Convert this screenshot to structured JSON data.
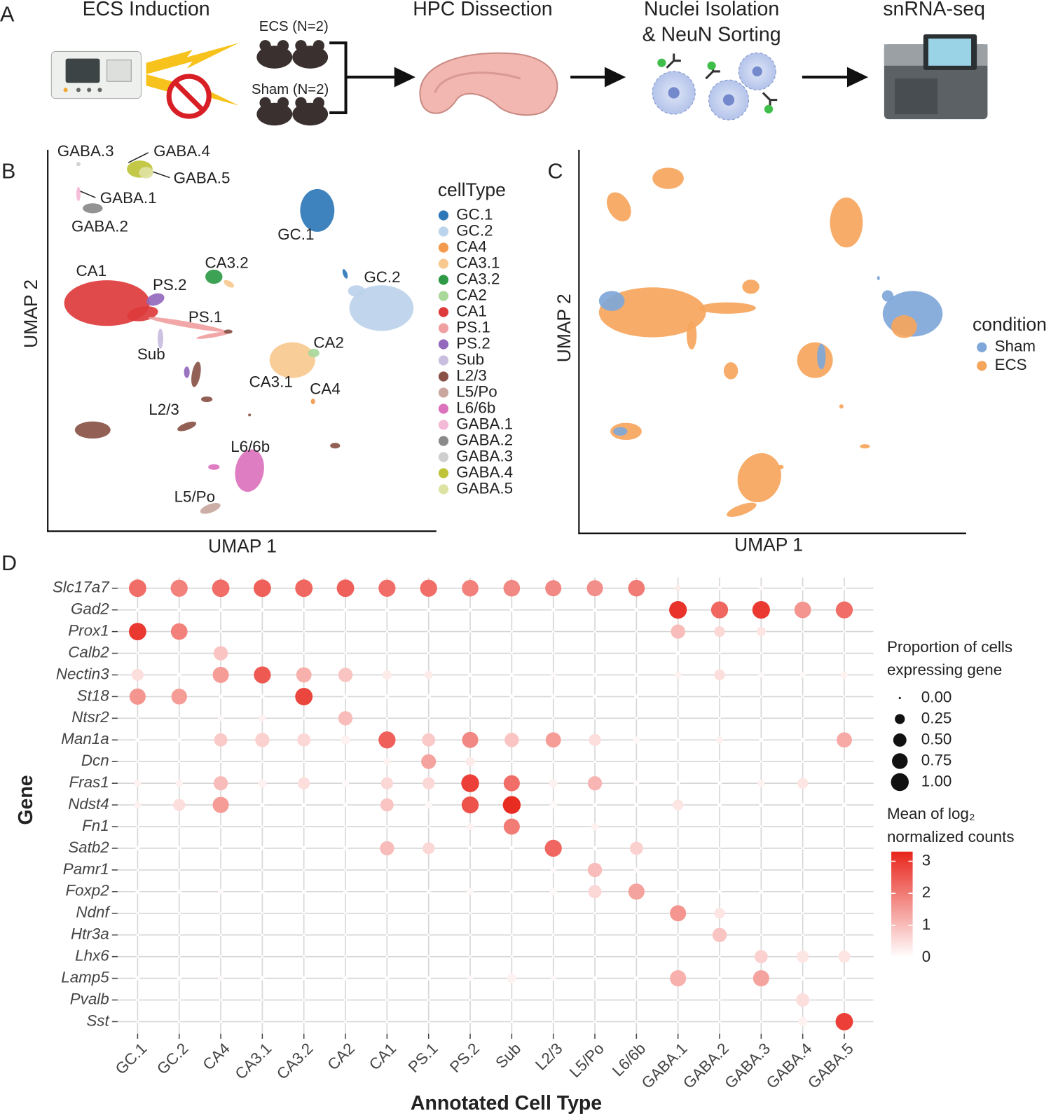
{
  "panel_labels": [
    "A",
    "B",
    "C",
    "D"
  ],
  "workflow": {
    "steps": [
      "ECS Induction",
      "HPC Dissection",
      "Nuclei Isolation",
      "& NeuN Sorting",
      "snRNA-seq"
    ],
    "groups": [
      "ECS (N=2)",
      "Sham (N=2)"
    ]
  },
  "chart_data": [
    {
      "type": "scatter",
      "x_label": "UMAP 1",
      "y_label": "UMAP 2",
      "legend_title": "cellType",
      "series": [
        {
          "name": "GC.1",
          "color": "#2f78b8"
        },
        {
          "name": "GC.2",
          "color": "#bcd3ec"
        },
        {
          "name": "CA4",
          "color": "#f39a4c"
        },
        {
          "name": "CA3.1",
          "color": "#f8c98f"
        },
        {
          "name": "CA3.2",
          "color": "#2e9a45"
        },
        {
          "name": "CA2",
          "color": "#a9d89a"
        },
        {
          "name": "CA1",
          "color": "#dd3b3b"
        },
        {
          "name": "PS.1",
          "color": "#f0a0a0"
        },
        {
          "name": "PS.2",
          "color": "#9368bd"
        },
        {
          "name": "Sub",
          "color": "#c9bde0"
        },
        {
          "name": "L2/3",
          "color": "#8a5247"
        },
        {
          "name": "L5/Po",
          "color": "#c9a79e"
        },
        {
          "name": "L6/6b",
          "color": "#dc72bd"
        },
        {
          "name": "GABA.1",
          "color": "#f4b9d7"
        },
        {
          "name": "GABA.2",
          "color": "#8a8a8a"
        },
        {
          "name": "GABA.3",
          "color": "#cfcfcf"
        },
        {
          "name": "GABA.4",
          "color": "#bfc33a"
        },
        {
          "name": "GABA.5",
          "color": "#dde2a2"
        }
      ]
    },
    {
      "type": "scatter",
      "x_label": "UMAP 1",
      "y_label": "UMAP 2",
      "legend_title": "condition",
      "series": [
        {
          "name": "Sham",
          "color": "#7fa7d9"
        },
        {
          "name": "ECS",
          "color": "#f6a55c"
        }
      ]
    },
    {
      "type": "dot",
      "x_label": "Annotated Cell Type",
      "y_label": "Gene",
      "categories": [
        "GC.1",
        "GC.2",
        "CA4",
        "CA3.1",
        "CA3.2",
        "CA2",
        "CA1",
        "PS.1",
        "PS.2",
        "Sub",
        "L2/3",
        "L5/Po",
        "L6/6b",
        "GABA.1",
        "GABA.2",
        "GABA.3",
        "GABA.4",
        "GABA.5"
      ],
      "genes": [
        "Slc17a7",
        "Gad2",
        "Prox1",
        "Calb2",
        "Nectin3",
        "St18",
        "Ntsr2",
        "Man1a",
        "Dcn",
        "Fras1",
        "Ndst4",
        "Fn1",
        "Satb2",
        "Pamr1",
        "Foxp2",
        "Ndnf",
        "Htr3a",
        "Lhx6",
        "Lamp5",
        "Pvalb",
        "Sst"
      ],
      "size_legend_title": [
        "Proportion of cells",
        "expressing gene"
      ],
      "size_ticks": [
        {
          "value": 0,
          "label": "0.00"
        },
        {
          "value": 0.25,
          "label": "0.25"
        },
        {
          "value": 0.5,
          "label": "0.50"
        },
        {
          "value": 0.75,
          "label": "0.75"
        },
        {
          "value": 1,
          "label": "1.00"
        }
      ],
      "color_legend_title": [
        "Mean of log₂",
        "normalized counts"
      ],
      "clim": [
        0,
        3.3
      ],
      "color_ticks": [
        0,
        1,
        2,
        3
      ],
      "color_range": [
        "#ffffff",
        "#e8251b"
      ],
      "grid": true,
      "proportion": [
        [
          0.95,
          0.9,
          0.95,
          0.95,
          0.95,
          0.95,
          0.9,
          0.9,
          0.85,
          0.85,
          0.8,
          0.8,
          0.85,
          0.05,
          0.02,
          0.02,
          0.01,
          0.01
        ],
        [
          0.01,
          0.01,
          0.01,
          0.01,
          0.01,
          0.01,
          0.01,
          0.01,
          0.01,
          0.01,
          0.01,
          0.01,
          0.01,
          0.98,
          0.9,
          0.98,
          0.85,
          0.9
        ],
        [
          0.95,
          0.85,
          0,
          0,
          0,
          0,
          0,
          0,
          0,
          0,
          0,
          0,
          0,
          0.6,
          0.3,
          0.2,
          0,
          0
        ],
        [
          0,
          0,
          0.6,
          0,
          0,
          0,
          0,
          0,
          0,
          0,
          0,
          0,
          0,
          0.02,
          0,
          0,
          0,
          0
        ],
        [
          0.4,
          0.02,
          0.8,
          0.9,
          0.7,
          0.6,
          0.2,
          0.15,
          0.02,
          0.02,
          0.05,
          0.02,
          0.02,
          0.1,
          0.3,
          0.05,
          0.05,
          0.1
        ],
        [
          0.8,
          0.75,
          0.02,
          0.02,
          0.95,
          0.02,
          0.02,
          0.02,
          0.02,
          0.02,
          0.02,
          0.02,
          0.02,
          0,
          0,
          0,
          0,
          0
        ],
        [
          0,
          0,
          0.05,
          0.1,
          0,
          0.6,
          0,
          0,
          0,
          0,
          0,
          0,
          0,
          0,
          0,
          0,
          0,
          0
        ],
        [
          0.02,
          0.02,
          0.5,
          0.6,
          0.5,
          0.2,
          0.9,
          0.5,
          0.8,
          0.6,
          0.7,
          0.4,
          0.1,
          0.02,
          0.1,
          0.02,
          0.02,
          0.7
        ],
        [
          0,
          0,
          0,
          0,
          0,
          0,
          0.1,
          0.65,
          0.2,
          0,
          0,
          0,
          0,
          0,
          0,
          0,
          0,
          0
        ],
        [
          0.1,
          0.1,
          0.6,
          0.15,
          0.4,
          0.1,
          0.4,
          0.4,
          1.0,
          0.8,
          0.15,
          0.6,
          0.05,
          0.02,
          0.02,
          0.1,
          0.3,
          0.02
        ],
        [
          0.1,
          0.4,
          0.8,
          0.02,
          0.02,
          0.02,
          0.5,
          0.1,
          0.9,
          1.0,
          0.1,
          0.02,
          0.02,
          0.3,
          0.02,
          0.02,
          0.02,
          0.02
        ],
        [
          0,
          0,
          0,
          0,
          0,
          0,
          0,
          0,
          0.1,
          0.8,
          0,
          0.1,
          0,
          0,
          0,
          0,
          0,
          0
        ],
        [
          0.02,
          0.02,
          0.02,
          0.02,
          0.02,
          0.02,
          0.6,
          0.4,
          0.02,
          0.02,
          0.9,
          0.02,
          0.5,
          0,
          0,
          0,
          0,
          0
        ],
        [
          0,
          0,
          0,
          0,
          0,
          0,
          0,
          0,
          0,
          0,
          0.05,
          0.6,
          0.05,
          0,
          0,
          0,
          0,
          0
        ],
        [
          0.02,
          0.02,
          0.05,
          0.02,
          0.02,
          0.02,
          0.02,
          0.02,
          0.1,
          0.02,
          0.1,
          0.5,
          0.8,
          0.02,
          0.02,
          0.02,
          0.02,
          0.02
        ],
        [
          0,
          0,
          0,
          0,
          0,
          0,
          0,
          0,
          0,
          0,
          0,
          0,
          0,
          0.8,
          0.3,
          0,
          0,
          0
        ],
        [
          0,
          0,
          0,
          0,
          0,
          0,
          0,
          0,
          0,
          0,
          0,
          0,
          0,
          0,
          0.6,
          0,
          0,
          0
        ],
        [
          0,
          0,
          0,
          0,
          0,
          0,
          0,
          0,
          0,
          0,
          0,
          0,
          0,
          0,
          0,
          0.5,
          0.4,
          0.4
        ],
        [
          0.02,
          0.02,
          0.05,
          0.02,
          0.02,
          0.02,
          0.02,
          0.02,
          0.05,
          0.2,
          0.05,
          0.02,
          0.02,
          0.8,
          0.02,
          0.8,
          0.02,
          0.02
        ],
        [
          0,
          0,
          0,
          0,
          0,
          0,
          0,
          0,
          0,
          0,
          0,
          0,
          0,
          0,
          0,
          0,
          0.5,
          0
        ],
        [
          0,
          0,
          0,
          0,
          0,
          0,
          0,
          0,
          0,
          0,
          0,
          0,
          0,
          0,
          0,
          0,
          0.2,
          0.95
        ]
      ],
      "mean": [
        [
          2.2,
          1.9,
          2.2,
          2.4,
          2.3,
          2.4,
          2.2,
          2.2,
          1.9,
          1.8,
          1.8,
          1.7,
          2.0,
          0.3,
          0.1,
          0.1,
          0.05,
          0.05
        ],
        [
          0.02,
          0.02,
          0.02,
          0.02,
          0.02,
          0.02,
          0.02,
          0.02,
          0.02,
          0.02,
          0.02,
          0.02,
          0.02,
          3.1,
          2.3,
          3.0,
          1.6,
          2.2
        ],
        [
          3.0,
          1.9,
          0,
          0,
          0,
          0,
          0,
          0,
          0,
          0,
          0,
          0,
          0,
          1.0,
          0.6,
          0.4,
          0,
          0
        ],
        [
          0,
          0,
          0.9,
          0,
          0,
          0,
          0,
          0,
          0,
          0,
          0,
          0,
          0,
          0.05,
          0,
          0,
          0,
          0
        ],
        [
          0.5,
          0.05,
          1.5,
          2.5,
          1.2,
          0.9,
          0.3,
          0.3,
          0.05,
          0.05,
          0.1,
          0.05,
          0.05,
          0.2,
          0.5,
          0.1,
          0.1,
          0.2
        ],
        [
          1.6,
          1.5,
          0.05,
          0.05,
          2.8,
          0.05,
          0.05,
          0.05,
          0.05,
          0.05,
          0.05,
          0.05,
          0.05,
          0,
          0,
          0,
          0,
          0
        ],
        [
          0,
          0,
          0.1,
          0.2,
          0,
          1.0,
          0,
          0,
          0,
          0,
          0,
          0,
          0,
          0,
          0,
          0,
          0,
          0
        ],
        [
          0.05,
          0.05,
          0.8,
          0.7,
          0.6,
          0.2,
          2.4,
          0.8,
          1.8,
          0.9,
          1.5,
          0.5,
          0.1,
          0.05,
          0.2,
          0.05,
          0.05,
          1.3
        ],
        [
          0,
          0,
          0,
          0,
          0,
          0,
          0.2,
          1.4,
          0.3,
          0,
          0,
          0,
          0,
          0,
          0,
          0,
          0,
          0
        ],
        [
          0.2,
          0.2,
          1.0,
          0.2,
          0.5,
          0.1,
          0.6,
          0.6,
          2.9,
          2.2,
          0.2,
          1.1,
          0.1,
          0.05,
          0.05,
          0.2,
          0.4,
          0.05
        ],
        [
          0.2,
          0.5,
          1.5,
          0.05,
          0.05,
          0.05,
          0.9,
          0.1,
          2.6,
          3.2,
          0.1,
          0.05,
          0.05,
          0.4,
          0.05,
          0.05,
          0.05,
          0.05
        ],
        [
          0,
          0,
          0,
          0,
          0,
          0,
          0,
          0,
          0.2,
          2.0,
          0,
          0.2,
          0,
          0,
          0,
          0,
          0,
          0
        ],
        [
          0.05,
          0.05,
          0.05,
          0.05,
          0.05,
          0.05,
          1.0,
          0.6,
          0.05,
          0.05,
          2.3,
          0.05,
          0.7,
          0,
          0,
          0,
          0,
          0
        ],
        [
          0,
          0,
          0,
          0,
          0,
          0,
          0,
          0,
          0,
          0,
          0.1,
          1.0,
          0.1,
          0,
          0,
          0,
          0,
          0
        ],
        [
          0.05,
          0.05,
          0.1,
          0.05,
          0.05,
          0.05,
          0.05,
          0.05,
          0.1,
          0.05,
          0.1,
          0.6,
          1.4,
          0.05,
          0.05,
          0.05,
          0.05,
          0.05
        ],
        [
          0,
          0,
          0,
          0,
          0,
          0,
          0,
          0,
          0,
          0,
          0,
          0,
          0,
          1.6,
          0.4,
          0,
          0,
          0
        ],
        [
          0,
          0,
          0,
          0,
          0,
          0,
          0,
          0,
          0,
          0,
          0,
          0,
          0,
          0,
          0.9,
          0,
          0,
          0
        ],
        [
          0,
          0,
          0,
          0,
          0,
          0,
          0,
          0,
          0,
          0,
          0,
          0,
          0,
          0,
          0,
          0.7,
          0.4,
          0.4
        ],
        [
          0.05,
          0.05,
          0.1,
          0.05,
          0.05,
          0.05,
          0.05,
          0.05,
          0.1,
          0.2,
          0.1,
          0.05,
          0.05,
          1.2,
          0.05,
          1.4,
          0.05,
          0.05
        ],
        [
          0,
          0,
          0,
          0,
          0,
          0,
          0,
          0,
          0,
          0,
          0,
          0,
          0,
          0,
          0,
          0,
          0.5,
          0
        ],
        [
          0,
          0,
          0,
          0,
          0,
          0,
          0,
          0,
          0,
          0,
          0,
          0,
          0,
          0,
          0,
          0,
          0.2,
          2.9
        ]
      ]
    }
  ]
}
